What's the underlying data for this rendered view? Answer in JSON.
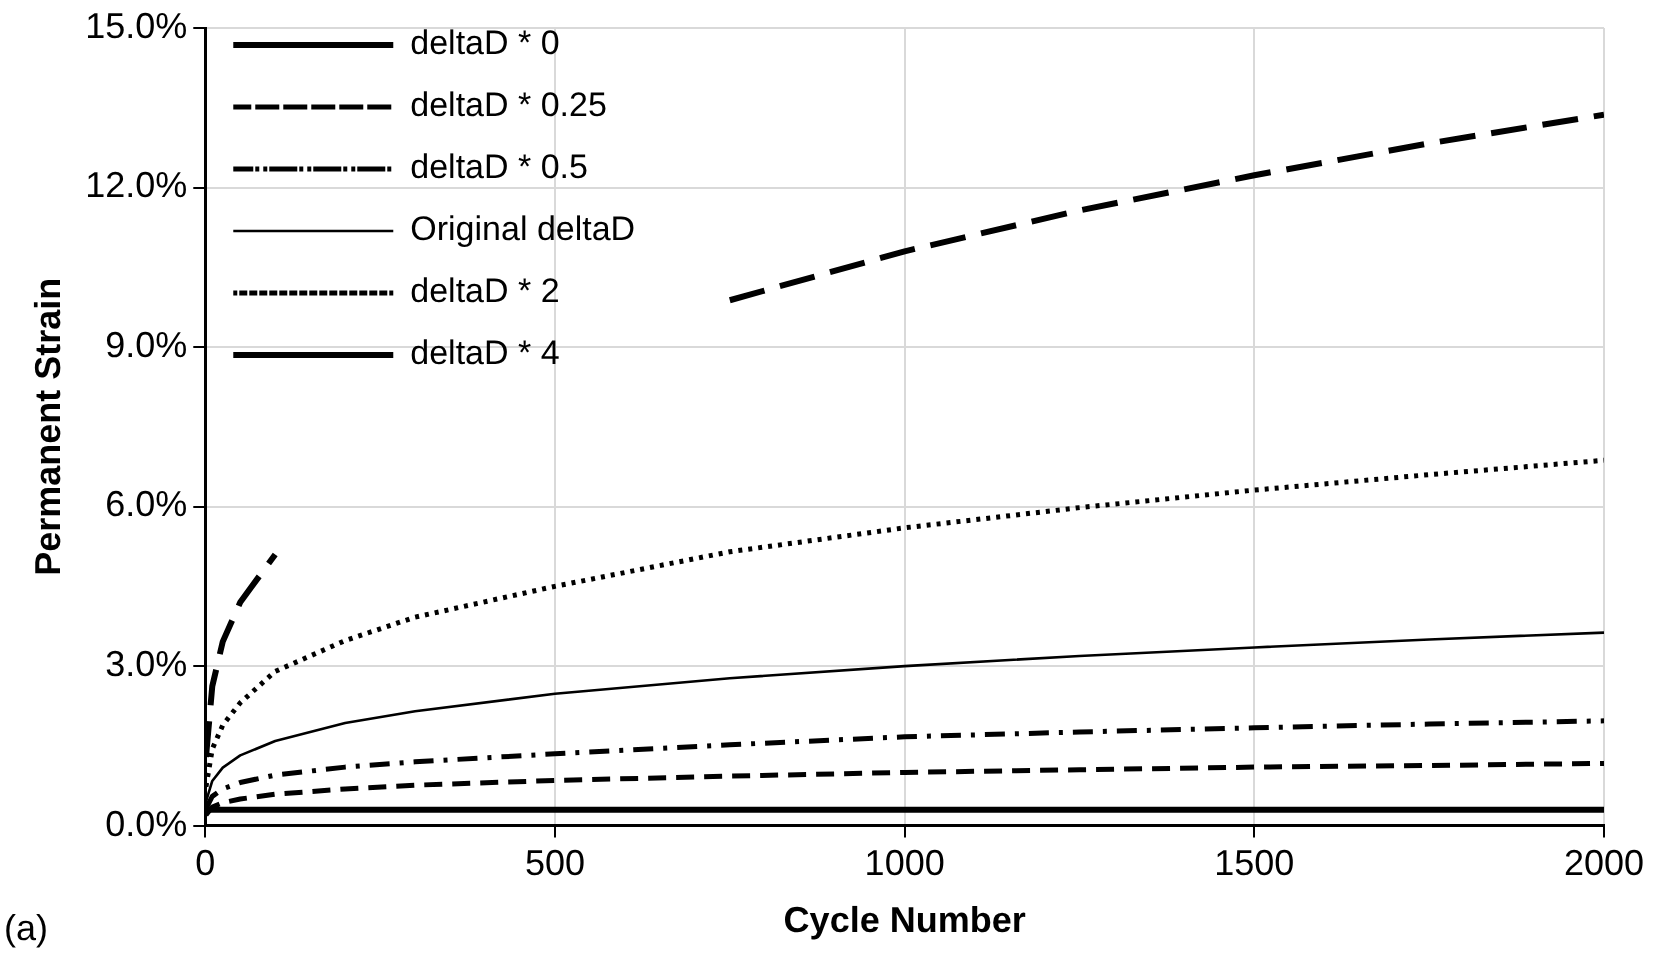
{
  "chart_data": {
    "type": "line",
    "xlabel": "Cycle Number",
    "ylabel": "Permanent Strain",
    "annotations": [
      "(a)"
    ],
    "x": [
      1,
      10,
      25,
      50,
      100,
      200,
      300,
      500,
      750,
      1000,
      1250,
      1500,
      1750,
      2000
    ],
    "series": [
      {
        "name": "deltaD * 0",
        "color": "#000000",
        "line_style": "solid",
        "values": [
          0.3,
          0.3,
          0.3,
          0.3,
          0.3,
          0.3,
          0.3,
          0.3,
          0.3,
          0.3,
          0.3,
          0.3,
          0.3,
          0.3
        ]
      },
      {
        "name": "deltaD * 0.25",
        "color": "#000000",
        "line_style": "dashed",
        "values": [
          0.2,
          0.35,
          0.43,
          0.5,
          0.59,
          0.69,
          0.76,
          0.85,
          0.93,
          1.0,
          1.05,
          1.1,
          1.13,
          1.17
        ]
      },
      {
        "name": "deltaD * 0.5",
        "color": "#000000",
        "line_style": "dashdot",
        "values": [
          0.32,
          0.55,
          0.69,
          0.81,
          0.95,
          1.1,
          1.2,
          1.35,
          1.52,
          1.67,
          1.76,
          1.84,
          1.91,
          1.97
        ]
      },
      {
        "name": "Original deltaD",
        "color": "#000000",
        "line_style": "solid",
        "values": [
          0.45,
          0.84,
          1.09,
          1.32,
          1.59,
          1.93,
          2.15,
          2.48,
          2.77,
          3.0,
          3.19,
          3.35,
          3.5,
          3.63
        ]
      },
      {
        "name": "deltaD * 2",
        "color": "#000000",
        "line_style": "dotted",
        "values": [
          0.73,
          1.44,
          1.89,
          2.31,
          2.9,
          3.48,
          3.92,
          4.5,
          5.15,
          5.6,
          5.98,
          6.31,
          6.6,
          6.87
        ]
      },
      {
        "name": "deltaD * 4",
        "color": "#000000",
        "line_style": "longdash",
        "values": [
          1.29,
          2.62,
          3.46,
          4.2,
          5.1,
          null,
          null,
          null,
          9.88,
          10.8,
          11.57,
          12.23,
          12.83,
          13.37
        ]
      }
    ],
    "xlim": [
      0,
      2000
    ],
    "xticks": [
      0,
      500,
      1000,
      1500,
      2000
    ],
    "ylim": [
      0,
      15
    ],
    "yticks": [
      {
        "value": 0,
        "label": "0.0%"
      },
      {
        "value": 3,
        "label": "3.0%"
      },
      {
        "value": 6,
        "label": "6.0%"
      },
      {
        "value": 9,
        "label": "9.0%"
      },
      {
        "value": 12,
        "label": "12.0%"
      },
      {
        "value": 15,
        "label": "15.0%"
      }
    ],
    "grid": true,
    "legend": "top left",
    "marker": "none"
  }
}
